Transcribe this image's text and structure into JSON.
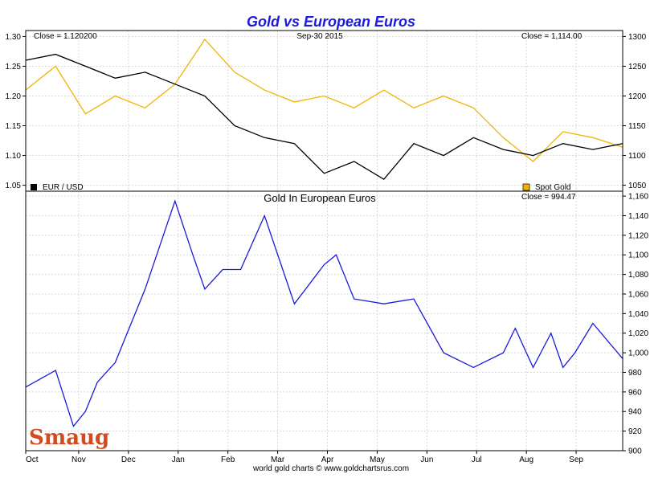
{
  "chart_data": [
    {
      "type": "line",
      "title": "Gold vs European Euros",
      "date_label": "Sep-30  2015",
      "left_close": "Close = 1.120200",
      "right_close": "Close = 1,114.00",
      "left_ylim": [
        1.04,
        1.31
      ],
      "left_yticks": [
        "1.30",
        "1.25",
        "1.20",
        "1.15",
        "1.10",
        "1.05"
      ],
      "right_ylim": [
        1040,
        1310
      ],
      "right_yticks": [
        "1300",
        "1250",
        "1200",
        "1150",
        "1100",
        "1050"
      ],
      "legend_left": "EUR / USD",
      "legend_right": "Spot Gold",
      "colors": {
        "eurusd": "#000000",
        "gold": "#f0b400"
      },
      "grid": true,
      "series": [
        {
          "name": "EUR / USD",
          "axis": "left",
          "x": [
            0,
            0.05,
            0.1,
            0.15,
            0.2,
            0.25,
            0.3,
            0.35,
            0.4,
            0.45,
            0.5,
            0.55,
            0.6,
            0.65,
            0.7,
            0.75,
            0.8,
            0.85,
            0.9,
            0.95,
            1
          ],
          "values": [
            1.26,
            1.27,
            1.25,
            1.23,
            1.24,
            1.22,
            1.2,
            1.15,
            1.13,
            1.12,
            1.07,
            1.09,
            1.06,
            1.12,
            1.1,
            1.13,
            1.11,
            1.1,
            1.12,
            1.11,
            1.12
          ]
        },
        {
          "name": "Spot Gold",
          "axis": "right",
          "x": [
            0,
            0.05,
            0.1,
            0.15,
            0.2,
            0.25,
            0.3,
            0.35,
            0.4,
            0.45,
            0.5,
            0.55,
            0.6,
            0.65,
            0.7,
            0.75,
            0.8,
            0.85,
            0.9,
            0.95,
            1
          ],
          "values": [
            1210,
            1250,
            1170,
            1200,
            1180,
            1220,
            1295,
            1240,
            1210,
            1190,
            1200,
            1180,
            1210,
            1180,
            1200,
            1180,
            1130,
            1090,
            1140,
            1130,
            1114
          ]
        }
      ]
    },
    {
      "type": "line",
      "title": "Gold In European Euros",
      "close": "Close = 994.47",
      "ylim": [
        900,
        1165
      ],
      "yticks": [
        "1,160",
        "1,140",
        "1,120",
        "1,100",
        "1,080",
        "1,060",
        "1,040",
        "1,020",
        "1,000",
        "980",
        "960",
        "940",
        "920",
        "900"
      ],
      "xticks": [
        "Oct",
        "Nov",
        "Dec",
        "Jan",
        "Feb",
        "Mar",
        "Apr",
        "May",
        "Jun",
        "Jul",
        "Aug",
        "Sep"
      ],
      "footer": "world gold charts  ©  www.goldchartsrus.com",
      "logo": "Smaug",
      "color": "#1a1adc",
      "grid": true,
      "series": [
        {
          "x": [
            0,
            0.05,
            0.08,
            0.1,
            0.12,
            0.15,
            0.2,
            0.25,
            0.28,
            0.3,
            0.33,
            0.36,
            0.4,
            0.45,
            0.5,
            0.52,
            0.55,
            0.6,
            0.65,
            0.7,
            0.75,
            0.8,
            0.82,
            0.85,
            0.88,
            0.9,
            0.92,
            0.95,
            1
          ],
          "values": [
            965,
            982,
            925,
            940,
            970,
            990,
            1065,
            1155,
            1100,
            1065,
            1085,
            1085,
            1140,
            1050,
            1090,
            1100,
            1055,
            1050,
            1055,
            1000,
            985,
            1000,
            1025,
            985,
            1020,
            985,
            1000,
            1030,
            994
          ]
        }
      ]
    }
  ]
}
